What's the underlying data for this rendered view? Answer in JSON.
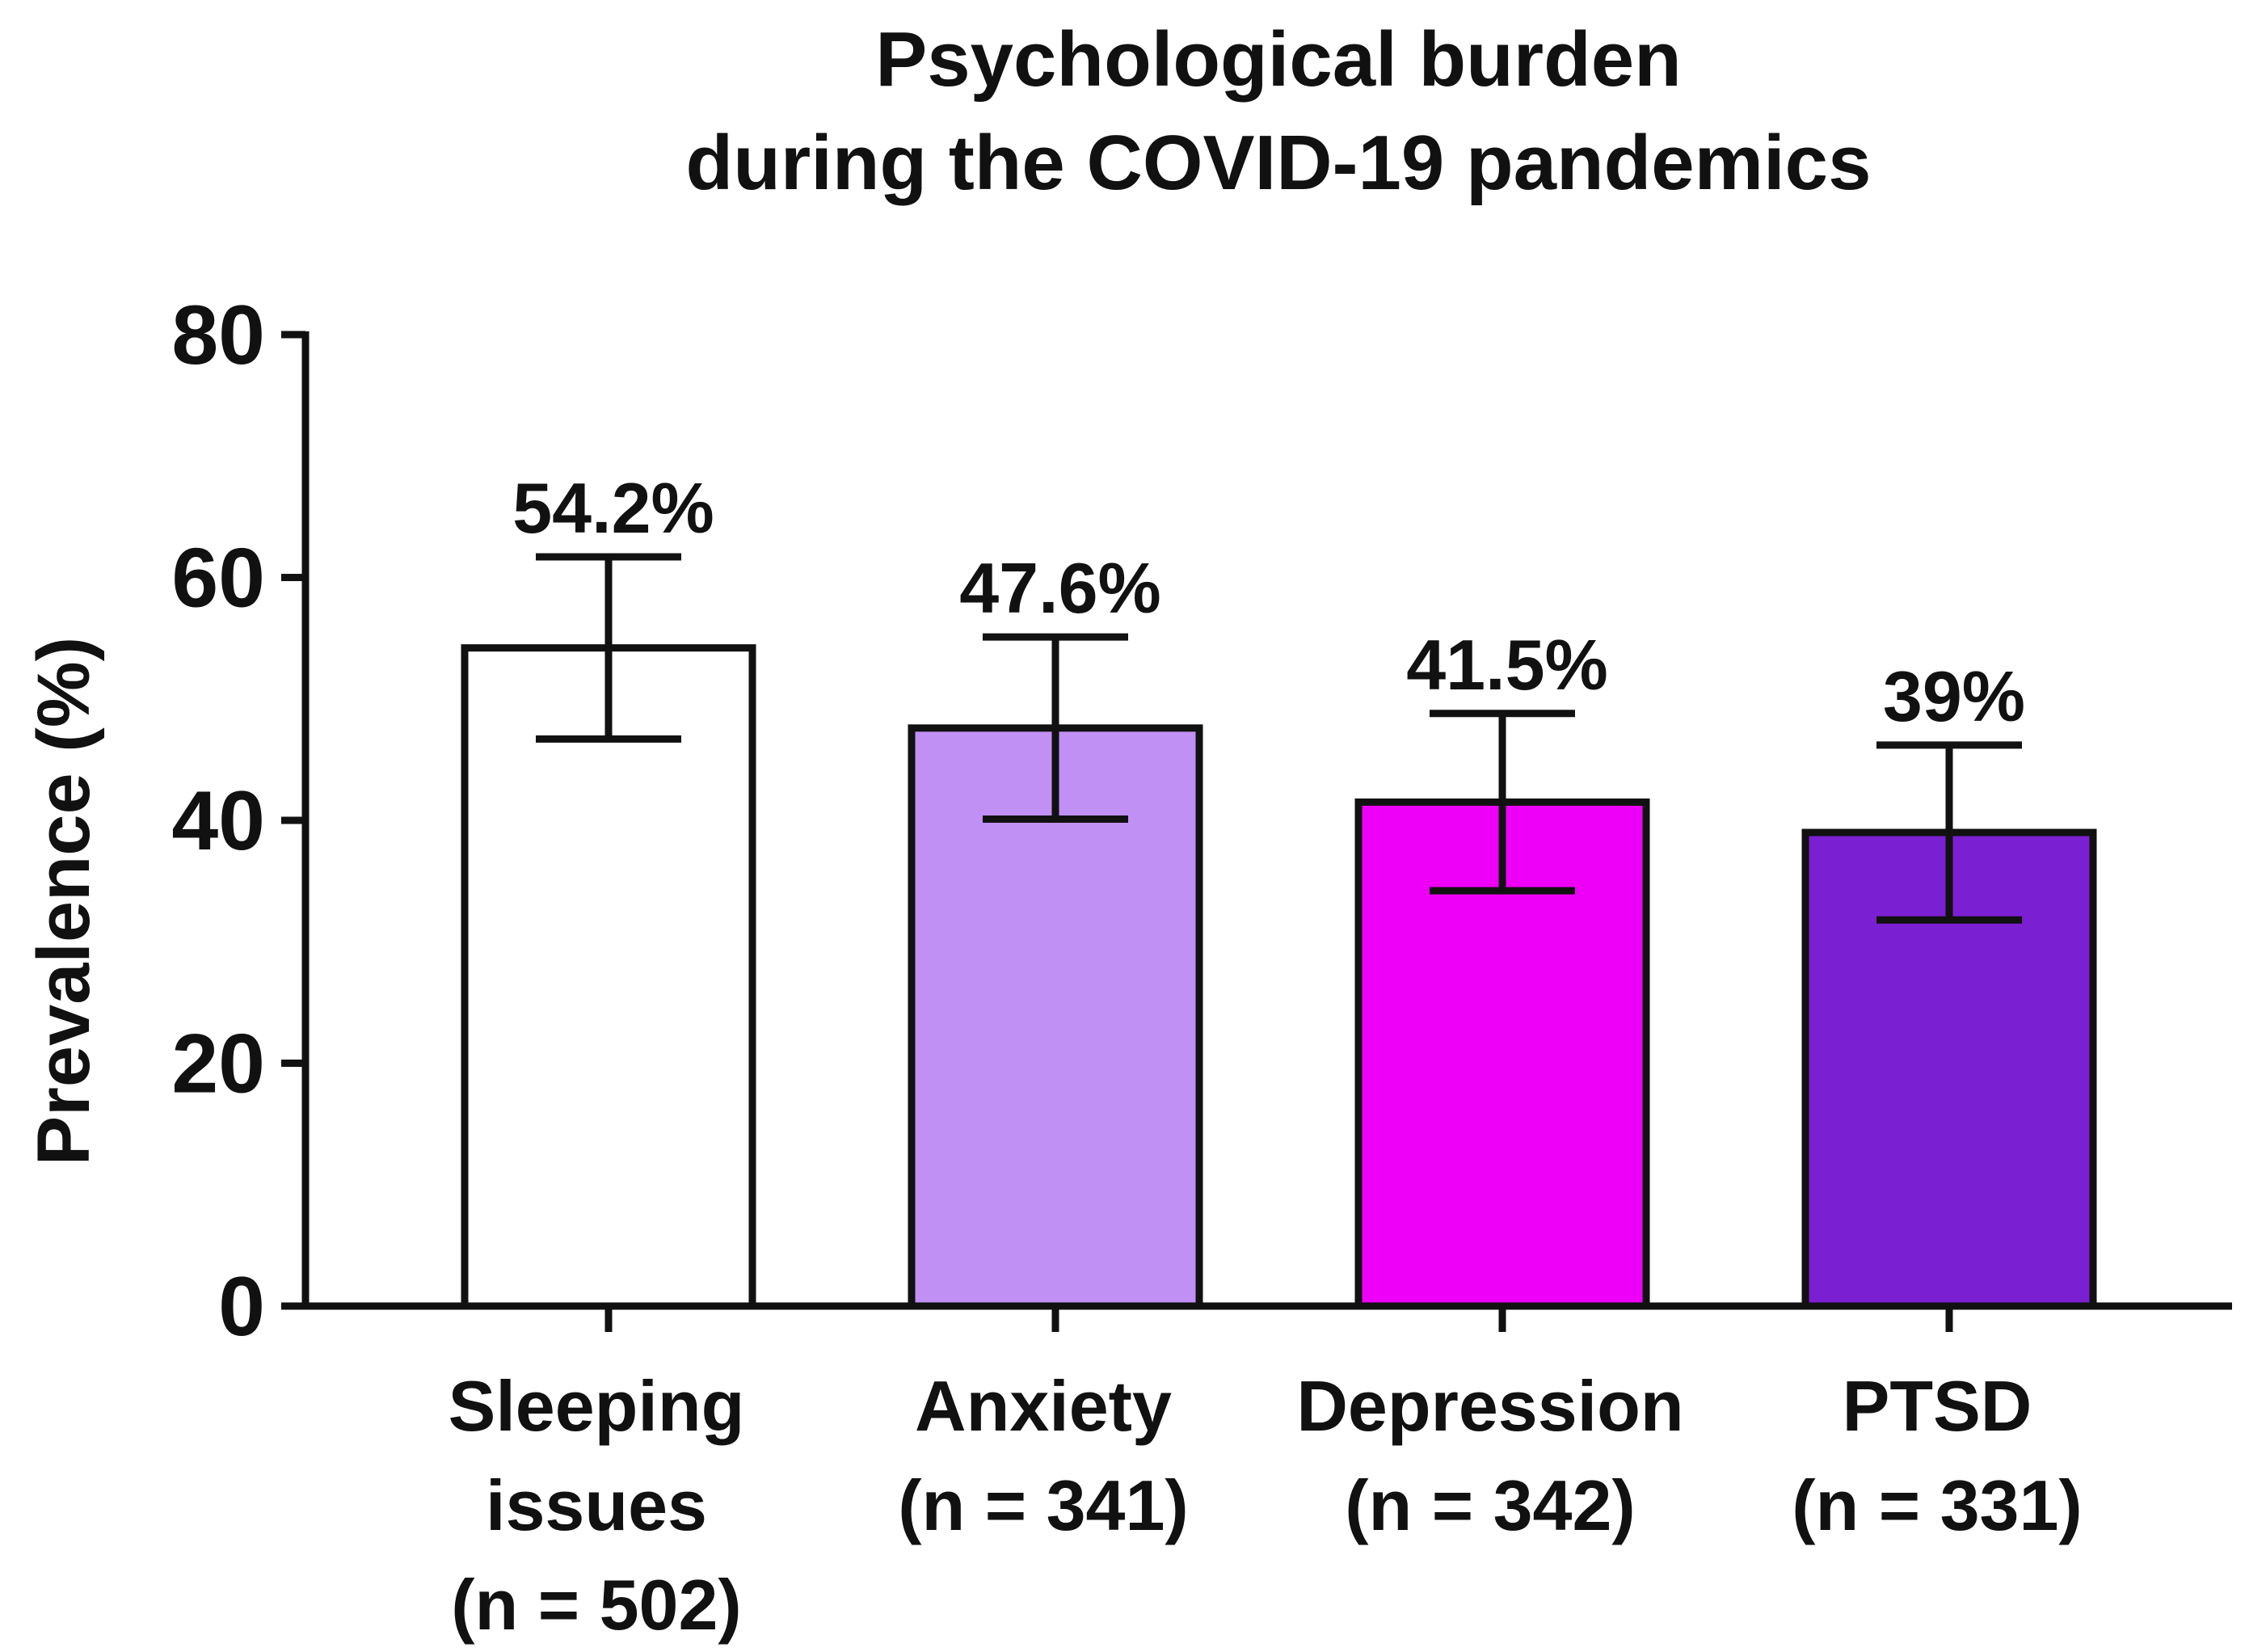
{
  "chart_data": {
    "type": "bar",
    "title_lines": [
      "Psychological burden",
      "during the COVID-19 pandemics"
    ],
    "ylabel": "Prevalence (%)",
    "xlabel": "",
    "ylim": [
      0,
      80
    ],
    "yticks": [
      0,
      20,
      40,
      60,
      80
    ],
    "grid": false,
    "legend": "none",
    "bars": [
      {
        "label_lines": [
          "Sleeping",
          "issues",
          "(n = 502)"
        ],
        "value": 54.2,
        "err_low": 46.7,
        "err_high": 61.7,
        "value_label": "54.2%",
        "color": "#ffffff"
      },
      {
        "label_lines": [
          "Anxiety",
          "(n = 341)"
        ],
        "value": 47.6,
        "err_low": 40.1,
        "err_high": 55.1,
        "value_label": "47.6%",
        "color": "#c190f5"
      },
      {
        "label_lines": [
          "Depression",
          "(n = 342)"
        ],
        "value": 41.5,
        "err_low": 34.2,
        "err_high": 48.8,
        "value_label": "41.5%",
        "color": "#ee00f8"
      },
      {
        "label_lines": [
          "PTSD",
          "(n = 331)"
        ],
        "value": 39,
        "err_low": 31.8,
        "err_high": 46.2,
        "value_label": "39%",
        "color": "#7b1fd3"
      }
    ]
  }
}
